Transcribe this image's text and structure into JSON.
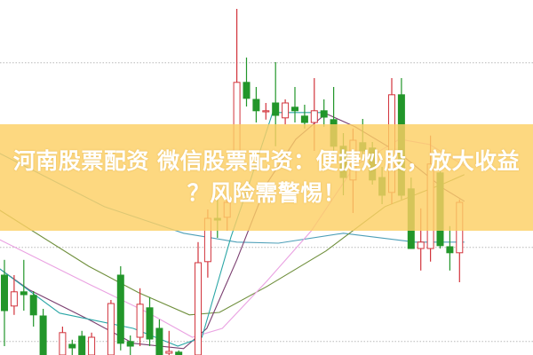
{
  "article": {
    "title_line1": "河南股票配资 微信股票配资：便捷炒股，放大收益",
    "title_line2": "？风险需警惕！",
    "banner_color": "#fdd064"
  },
  "chart_data": {
    "type": "candlestick",
    "grid": "horizontal dotted",
    "up_color": "#d2343c",
    "down_color": "#22962a",
    "candles": [
      [
        0,
        22.5,
        12.5,
        26.8,
        2.5
      ],
      [
        1,
        13.8,
        17.8,
        22.5,
        11.3
      ],
      [
        2,
        17.8,
        17,
        26.8,
        12.5
      ],
      [
        3,
        16.8,
        11.3,
        18,
        8
      ],
      [
        4,
        11,
        0,
        13,
        0
      ],
      [
        6,
        0,
        6.3,
        8,
        0
      ],
      [
        7,
        3,
        2,
        4.3,
        0
      ],
      [
        8,
        5.3,
        0,
        6.8,
        0
      ],
      [
        9,
        0,
        5,
        6.3,
        0
      ],
      [
        11,
        0,
        14.5,
        15.5,
        0
      ],
      [
        12,
        22.5,
        3.3,
        25,
        1.3
      ],
      [
        13,
        3.8,
        2.5,
        5.5,
        0
      ],
      [
        14,
        5,
        14.3,
        18.8,
        2.5
      ],
      [
        15,
        13.3,
        4.5,
        16.3,
        2.5
      ],
      [
        16,
        7.5,
        0,
        10,
        0
      ],
      [
        17,
        0.5,
        1,
        6.8,
        0
      ],
      [
        18,
        0.8,
        0,
        1.3,
        0
      ],
      [
        20,
        0,
        26,
        31.8,
        0
      ],
      [
        21,
        26.3,
        38.5,
        41,
        21.8
      ],
      [
        22,
        38.5,
        38,
        44.3,
        33
      ],
      [
        23,
        38.8,
        43,
        45,
        35
      ],
      [
        24,
        57.5,
        76.8,
        97.5,
        57.5
      ],
      [
        25,
        76.8,
        72.3,
        83.8,
        70
      ],
      [
        26,
        72,
        68.8,
        75.5,
        65.5
      ],
      [
        27,
        68.5,
        68.8,
        71,
        66.3
      ],
      [
        28,
        71,
        67.5,
        82.5,
        58.8
      ],
      [
        29,
        66.8,
        71,
        72,
        65
      ],
      [
        30,
        69.8,
        68.8,
        75.5,
        65.5
      ],
      [
        31,
        67.3,
        65.5,
        70.5,
        63.8
      ],
      [
        32,
        65.5,
        68.8,
        78,
        57.5
      ],
      [
        33,
        68.8,
        67,
        72,
        64.3
      ],
      [
        34,
        66.3,
        58.8,
        75.5,
        57.5
      ],
      [
        35,
        58.8,
        50,
        62.5,
        45
      ],
      [
        36,
        49.3,
        60.5,
        63.8,
        40
      ],
      [
        37,
        59.8,
        57.5,
        66.5,
        55
      ],
      [
        38,
        58.3,
        49.3,
        60,
        48
      ],
      [
        39,
        50,
        45,
        53,
        42.5
      ],
      [
        40,
        45.8,
        73.3,
        78,
        42.5
      ],
      [
        41,
        73.3,
        45,
        78,
        43.8
      ],
      [
        42,
        46.8,
        30,
        50,
        30
      ],
      [
        43,
        30,
        31.8,
        41.3,
        23.8
      ],
      [
        44,
        30,
        53.8,
        61.8,
        26.3
      ],
      [
        45,
        51.3,
        30.8,
        52.5,
        30
      ],
      [
        46,
        30.5,
        28.8,
        36.3,
        23.8
      ],
      [
        47,
        28.8,
        43,
        43.8,
        20.5
      ]
    ],
    "moving_averages": [
      {
        "color": "#4d9fb8",
        "points": [
          [
            -0.5,
            56.8
          ],
          [
            10.3,
            41.8
          ],
          [
            18.5,
            34.3
          ],
          [
            24,
            31.8
          ],
          [
            28.3,
            31.5
          ],
          [
            35,
            34.3
          ],
          [
            42.4,
            31.8
          ],
          [
            47.5,
            31.8
          ]
        ]
      },
      {
        "color": "#6f8f3c",
        "points": [
          [
            -0.5,
            40.8
          ],
          [
            8.7,
            25
          ],
          [
            13.9,
            17.5
          ],
          [
            19.1,
            11.3
          ],
          [
            22.2,
            12
          ],
          [
            27.1,
            19.3
          ],
          [
            33.2,
            29.3
          ],
          [
            39.3,
            41.8
          ],
          [
            45.4,
            48.3
          ],
          [
            47.5,
            50.8
          ]
        ]
      },
      {
        "color": "#eaa2e2",
        "points": [
          [
            -0.5,
            32.5
          ],
          [
            8.7,
            20
          ],
          [
            14.9,
            11.8
          ],
          [
            19.4,
            5
          ],
          [
            22.5,
            7.5
          ],
          [
            27.1,
            20.8
          ],
          [
            31.7,
            35
          ],
          [
            36.2,
            53.3
          ],
          [
            40.8,
            60.8
          ],
          [
            43.9,
            59.3
          ],
          [
            47.5,
            53.3
          ]
        ]
      },
      {
        "color": "#7b3f70",
        "points": [
          [
            -0.5,
            24.3
          ],
          [
            2.6,
            18.3
          ],
          [
            8.7,
            10
          ],
          [
            13.3,
            3.3
          ],
          [
            18.5,
            1.8
          ],
          [
            20.9,
            7.5
          ],
          [
            24,
            26.8
          ],
          [
            27.1,
            48.3
          ],
          [
            30.1,
            60.8
          ],
          [
            33.2,
            68
          ],
          [
            36.2,
            64.3
          ],
          [
            40.8,
            56.8
          ],
          [
            45.4,
            46.8
          ],
          [
            47.5,
            43.3
          ]
        ]
      },
      {
        "color": "#2aa6a6",
        "points": [
          [
            -0.5,
            24.3
          ],
          [
            5.7,
            11.8
          ],
          [
            13.3,
            7.5
          ],
          [
            17.9,
            2.5
          ],
          [
            20.4,
            5
          ],
          [
            23.4,
            33.3
          ],
          [
            25.5,
            50
          ],
          [
            27.7,
            68.3
          ],
          [
            31.7,
            68.3
          ],
          [
            33.2,
            68.3
          ]
        ]
      }
    ],
    "gridlines": [
      82.3,
      30.3,
      3.8
    ]
  }
}
